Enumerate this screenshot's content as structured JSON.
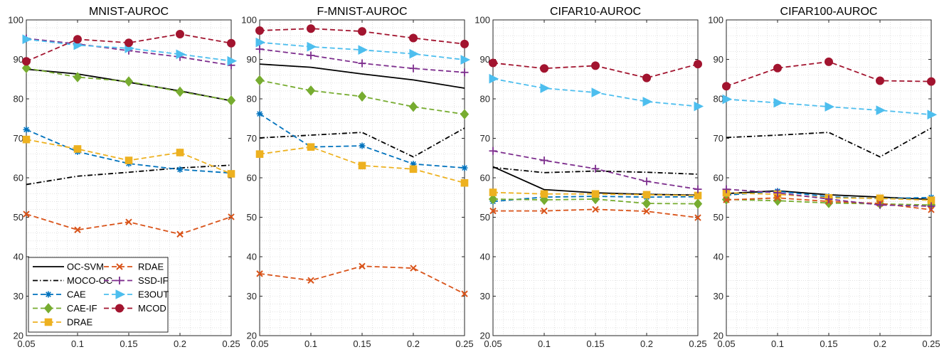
{
  "chart_data": [
    {
      "type": "line",
      "title": "MNIST-AUROC",
      "x": [
        0.05,
        0.1,
        0.15,
        0.2,
        0.25
      ],
      "x_tick_labels": [
        "0.05",
        "0.1",
        "0.15",
        "0.2",
        "0.25"
      ],
      "y_ticks": [
        20,
        30,
        40,
        50,
        60,
        70,
        80,
        90,
        100
      ],
      "ylim": [
        20,
        100
      ],
      "xlim": [
        0.05,
        0.25
      ],
      "grid": "minor-dotted",
      "legend_position": "bottom-left",
      "series": [
        {
          "name": "OC-SVM",
          "values": [
            87.5,
            86.3,
            84.2,
            82.0,
            79.5
          ]
        },
        {
          "name": "MOCO-OC",
          "values": [
            58.3,
            60.4,
            61.4,
            62.5,
            63.2
          ]
        },
        {
          "name": "CAE",
          "values": [
            72.2,
            66.6,
            63.6,
            62.1,
            61.2
          ]
        },
        {
          "name": "CAE-IF",
          "values": [
            87.8,
            85.5,
            84.4,
            81.8,
            79.6
          ]
        },
        {
          "name": "DRAE",
          "values": [
            69.7,
            67.3,
            64.4,
            66.4,
            61.0
          ]
        },
        {
          "name": "RDAE",
          "values": [
            50.8,
            46.8,
            48.8,
            45.7,
            50.1
          ]
        },
        {
          "name": "SSD-IF",
          "values": [
            95.3,
            93.9,
            92.2,
            90.6,
            88.5
          ]
        },
        {
          "name": "E3OUT",
          "values": [
            95.1,
            93.6,
            92.8,
            91.3,
            89.6
          ]
        },
        {
          "name": "MCOD",
          "values": [
            89.5,
            95.1,
            94.2,
            96.4,
            94.1
          ]
        }
      ]
    },
    {
      "type": "line",
      "title": "F-MNIST-AUROC",
      "x": [
        0.05,
        0.1,
        0.15,
        0.2,
        0.25
      ],
      "x_tick_labels": [
        "0.05",
        "0.1",
        "0.15",
        "0.2",
        "0.25"
      ],
      "y_ticks": [
        20,
        30,
        40,
        50,
        60,
        70,
        80,
        90,
        100
      ],
      "ylim": [
        20,
        100
      ],
      "xlim": [
        0.05,
        0.25
      ],
      "grid": "minor-dotted",
      "series": [
        {
          "name": "OC-SVM",
          "values": [
            88.8,
            88.0,
            86.3,
            84.8,
            82.7
          ]
        },
        {
          "name": "MOCO-OC",
          "values": [
            70.1,
            70.8,
            71.5,
            65.3,
            72.6
          ]
        },
        {
          "name": "CAE",
          "values": [
            76.2,
            67.8,
            68.1,
            63.5,
            62.5
          ]
        },
        {
          "name": "CAE-IF",
          "values": [
            84.7,
            82.1,
            80.6,
            78.0,
            76.1
          ]
        },
        {
          "name": "DRAE",
          "values": [
            66.0,
            67.8,
            63.1,
            62.2,
            58.7
          ]
        },
        {
          "name": "RDAE",
          "values": [
            35.7,
            34.0,
            37.6,
            37.1,
            30.6
          ]
        },
        {
          "name": "SSD-IF",
          "values": [
            92.6,
            91.0,
            89.0,
            87.7,
            86.7
          ]
        },
        {
          "name": "E3OUT",
          "values": [
            94.3,
            93.2,
            92.4,
            91.4,
            89.9
          ]
        },
        {
          "name": "MCOD",
          "values": [
            97.3,
            97.8,
            97.1,
            95.4,
            93.9
          ]
        }
      ]
    },
    {
      "type": "line",
      "title": "CIFAR10-AUROC",
      "x": [
        0.05,
        0.1,
        0.15,
        0.2,
        0.25
      ],
      "x_tick_labels": [
        "0.05",
        "0.1",
        "0.15",
        "0.2",
        "0.25"
      ],
      "y_ticks": [
        20,
        30,
        40,
        50,
        60,
        70,
        80,
        90,
        100
      ],
      "ylim": [
        20,
        100
      ],
      "xlim": [
        0.05,
        0.25
      ],
      "grid": "minor-dotted",
      "series": [
        {
          "name": "OC-SVM",
          "values": [
            62.8,
            57.0,
            56.2,
            55.8,
            55.6
          ]
        },
        {
          "name": "MOCO-OC",
          "values": [
            62.6,
            61.3,
            61.7,
            61.4,
            60.9
          ]
        },
        {
          "name": "CAE",
          "values": [
            54.0,
            55.1,
            55.3,
            55.1,
            55.2
          ]
        },
        {
          "name": "CAE-IF",
          "values": [
            54.6,
            54.4,
            54.6,
            53.5,
            53.4
          ]
        },
        {
          "name": "DRAE",
          "values": [
            56.3,
            55.9,
            55.9,
            55.7,
            55.5
          ]
        },
        {
          "name": "RDAE",
          "values": [
            51.6,
            51.6,
            52.0,
            51.5,
            49.9
          ]
        },
        {
          "name": "SSD-IF",
          "values": [
            66.8,
            64.4,
            62.3,
            59.1,
            57.1
          ]
        },
        {
          "name": "E3OUT",
          "values": [
            85.1,
            82.7,
            81.6,
            79.3,
            78.1
          ]
        },
        {
          "name": "MCOD",
          "values": [
            89.1,
            87.7,
            88.4,
            85.3,
            88.8
          ]
        }
      ]
    },
    {
      "type": "line",
      "title": "CIFAR100-AUROC",
      "x": [
        0.05,
        0.1,
        0.15,
        0.2,
        0.25
      ],
      "x_tick_labels": [
        "0.05",
        "0.1",
        "0.15",
        "0.2",
        "0.25"
      ],
      "y_ticks": [
        20,
        30,
        40,
        50,
        60,
        70,
        80,
        90,
        100
      ],
      "ylim": [
        20,
        100
      ],
      "xlim": [
        0.05,
        0.25
      ],
      "grid": "minor-dotted",
      "series": [
        {
          "name": "OC-SVM",
          "values": [
            56.0,
            56.7,
            55.7,
            55.1,
            54.5
          ]
        },
        {
          "name": "MOCO-OC",
          "values": [
            70.2,
            70.8,
            71.5,
            65.3,
            72.6
          ]
        },
        {
          "name": "CAE",
          "values": [
            55.6,
            56.6,
            55.2,
            54.7,
            55.0
          ]
        },
        {
          "name": "CAE-IF",
          "values": [
            54.5,
            54.2,
            53.6,
            53.4,
            53.1
          ]
        },
        {
          "name": "DRAE",
          "values": [
            56.2,
            55.8,
            54.9,
            54.8,
            54.3
          ]
        },
        {
          "name": "RDAE",
          "values": [
            54.4,
            54.9,
            54.0,
            53.5,
            51.9
          ]
        },
        {
          "name": "SSD-IF",
          "values": [
            57.1,
            56.2,
            54.6,
            53.1,
            52.8
          ]
        },
        {
          "name": "E3OUT",
          "values": [
            79.9,
            79.0,
            78.0,
            77.1,
            76.0
          ]
        },
        {
          "name": "MCOD",
          "values": [
            83.2,
            87.8,
            89.4,
            84.6,
            84.4
          ]
        }
      ]
    }
  ],
  "series_styles": [
    {
      "name": "OC-SVM",
      "color": "#000000",
      "dash": "solid",
      "marker": "none"
    },
    {
      "name": "MOCO-OC",
      "color": "#000000",
      "dash": "dashdot",
      "marker": "none"
    },
    {
      "name": "CAE",
      "color": "#0072BD",
      "dash": "dashed",
      "marker": "asterisk"
    },
    {
      "name": "CAE-IF",
      "color": "#77AC30",
      "dash": "dashed",
      "marker": "diamond"
    },
    {
      "name": "DRAE",
      "color": "#EDB120",
      "dash": "dashed",
      "marker": "square"
    },
    {
      "name": "RDAE",
      "color": "#D95319",
      "dash": "dashed",
      "marker": "x"
    },
    {
      "name": "SSD-IF",
      "color": "#7E2F8E",
      "dash": "dashed",
      "marker": "plus"
    },
    {
      "name": "E3OUT",
      "color": "#4DBEEE",
      "dash": "dashed",
      "marker": "triangle-right"
    },
    {
      "name": "MCOD",
      "color": "#A2142F",
      "dash": "dashed",
      "marker": "circle"
    }
  ]
}
